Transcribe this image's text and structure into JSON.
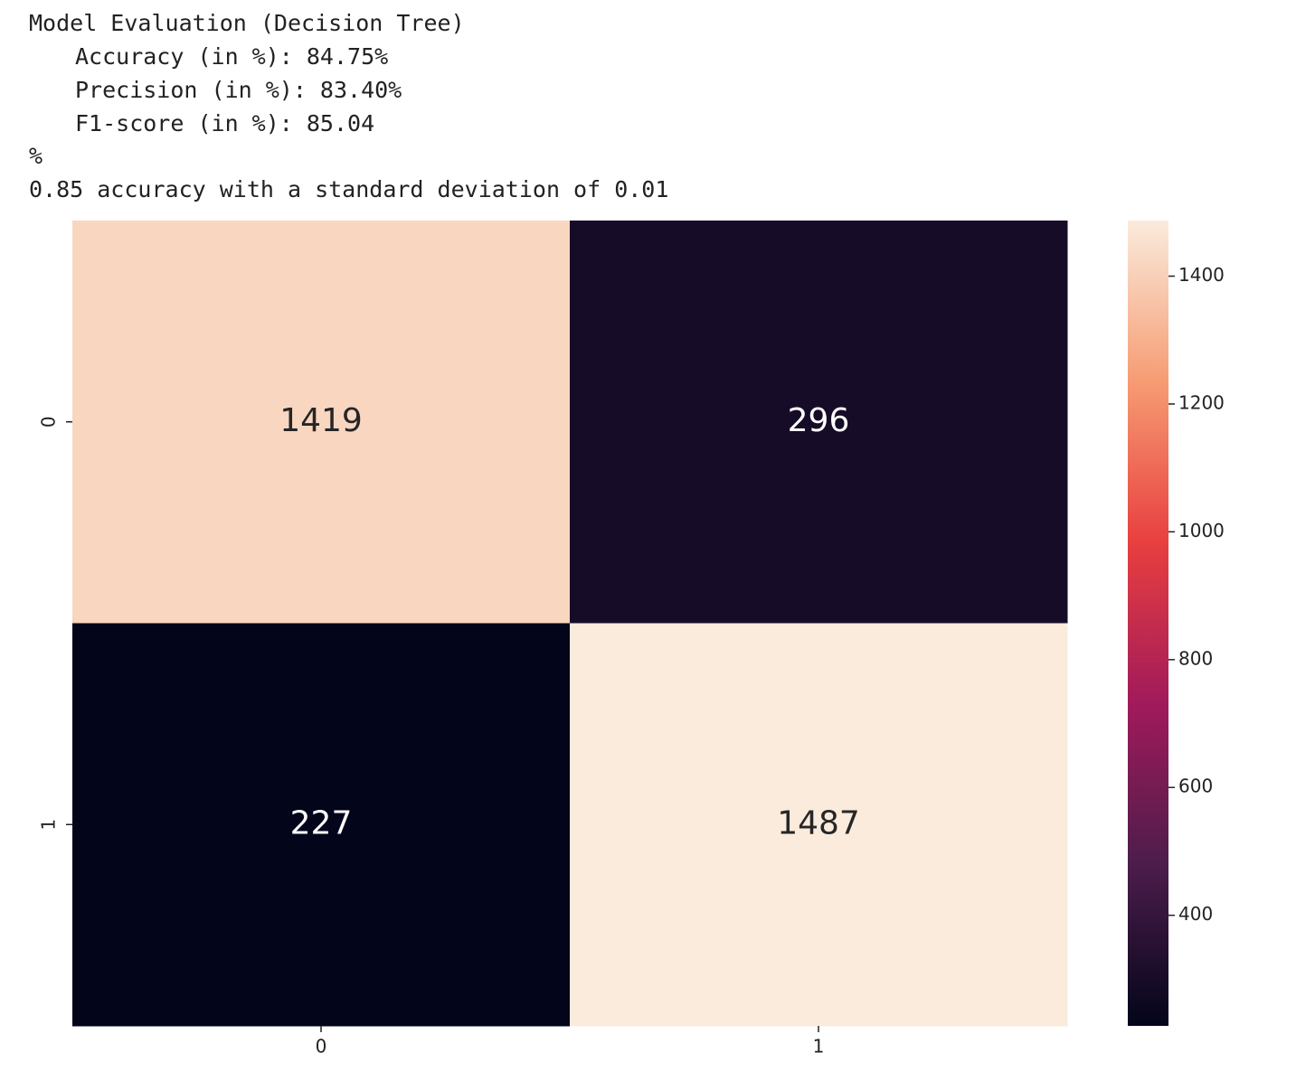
{
  "output_lines": [
    "Model Evaluation (Decision Tree)",
    "Accuracy (in %): 84.75%",
    "Precision (in %): 83.40%",
    "F1-score (in %): 85.04",
    "%",
    "0.85 accuracy with a standard deviation of 0.01"
  ],
  "chart_data": {
    "type": "heatmap",
    "x_categories": [
      "0",
      "1"
    ],
    "y_categories": [
      "0",
      "1"
    ],
    "values": [
      [
        1419,
        296
      ],
      [
        227,
        1487
      ]
    ],
    "colorscale": [
      "#03051a",
      "#4c1d4b",
      "#a11a5b",
      "#e83f3f",
      "#f69c73",
      "#faebdd"
    ],
    "colorbar": {
      "lim": [
        227,
        1487
      ],
      "ticks": [
        400,
        600,
        800,
        1000,
        1200,
        1400
      ]
    }
  }
}
